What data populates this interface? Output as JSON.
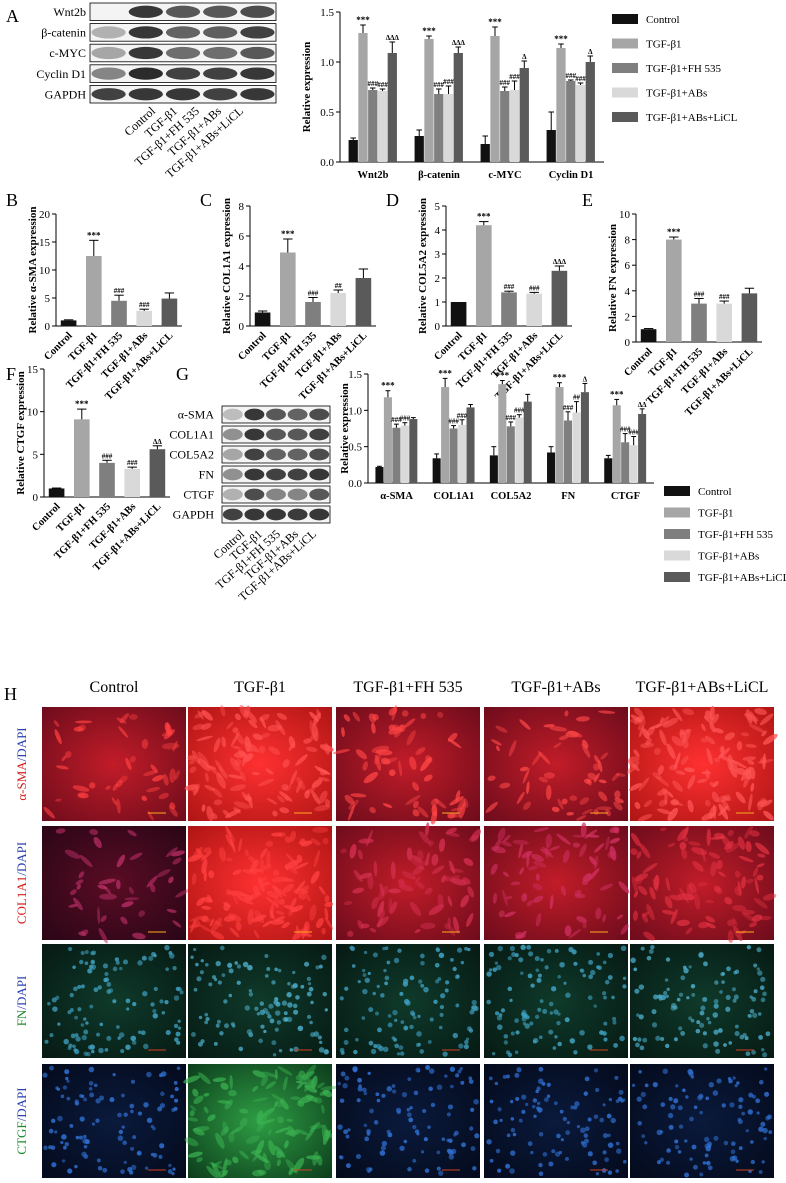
{
  "panel_letters": [
    "A",
    "B",
    "C",
    "D",
    "E",
    "F",
    "G",
    "H"
  ],
  "groups": [
    "Control",
    "TGF-β1",
    "TGF-β1+FH 535",
    "TGF-β1+ABs",
    "TGF-β1+ABs+LiCL"
  ],
  "colors": {
    "Control": "#111111",
    "TGF-β1": "#a6a6a6",
    "TGF-β1+FH 535": "#7f7f7f",
    "TGF-β1+ABs": "#d9d9d9",
    "TGF-β1+ABs+LiCL": "#5a5a5a"
  },
  "blotA": {
    "proteins": [
      "Wnt2b",
      "β-catenin",
      "c-MYC",
      "Cyclin D1",
      "GAPDH"
    ]
  },
  "blotG": {
    "proteins": [
      "α-SMA",
      "COL1A1",
      "COL5A2",
      "FN",
      "CTGF",
      "GAPDH"
    ]
  },
  "chart_data": [
    {
      "id": "A",
      "type": "bar",
      "ylabel": "Relative  expression",
      "ylim": [
        0,
        1.5
      ],
      "yticks": [
        "0.0",
        "0.5",
        "1.0",
        "1.5"
      ],
      "categories": [
        "Wnt2b",
        "β-catenin",
        "c-MYC",
        "Cyclin D1"
      ],
      "series": [
        {
          "name": "Control",
          "values": [
            0.22,
            0.26,
            0.18,
            0.32
          ],
          "err": [
            0.02,
            0.06,
            0.08,
            0.18
          ],
          "labels": [
            "",
            "",
            "",
            ""
          ]
        },
        {
          "name": "TGF-β1",
          "values": [
            1.29,
            1.23,
            1.26,
            1.14
          ],
          "err": [
            0.08,
            0.03,
            0.09,
            0.04
          ],
          "labels": [
            "***",
            "***",
            "***",
            "***"
          ]
        },
        {
          "name": "TGF-β1+FH 535",
          "values": [
            0.72,
            0.68,
            0.71,
            0.81
          ],
          "err": [
            0.02,
            0.05,
            0.04,
            0.01
          ],
          "labels": [
            "###",
            "###",
            "###",
            "###"
          ]
        },
        {
          "name": "TGF-β1+ABs",
          "values": [
            0.71,
            0.68,
            0.72,
            0.77
          ],
          "err": [
            0.02,
            0.08,
            0.09,
            0.02
          ],
          "labels": [
            "###",
            "###",
            "###",
            "###"
          ]
        },
        {
          "name": "TGF-β1+ABs+LiCL",
          "values": [
            1.09,
            1.09,
            0.94,
            1.0
          ],
          "err": [
            0.11,
            0.06,
            0.07,
            0.06
          ],
          "labels": [
            "ΔΔΔ",
            "ΔΔΔ",
            "Δ",
            "Δ"
          ]
        }
      ]
    },
    {
      "id": "B",
      "type": "bar",
      "ylabel": "Relative α-SMA expression",
      "ylim": [
        0,
        20
      ],
      "yticks": [
        "0",
        "5",
        "10",
        "15",
        "20"
      ],
      "categories": [
        "Control",
        "TGF-β1",
        "TGF-β1+FH 535",
        "TGF-β1+ABs",
        "TGF-β1+ABs+LiCL"
      ],
      "values": [
        1.0,
        12.5,
        4.5,
        2.7,
        4.9
      ],
      "err": [
        0.1,
        2.8,
        1.0,
        0.3,
        1.0
      ],
      "labels": [
        "",
        "***",
        "###",
        "###",
        ""
      ]
    },
    {
      "id": "C",
      "type": "bar",
      "ylabel": "Relative COL1A1 expression",
      "ylim": [
        0,
        8
      ],
      "yticks": [
        "0",
        "2",
        "4",
        "6",
        "8"
      ],
      "categories": [
        "Control",
        "TGF-β1",
        "TGF-β1+FH 535",
        "TGF-β1+ABs",
        "TGF-β1+ABs+LiCL"
      ],
      "values": [
        0.9,
        4.9,
        1.6,
        2.2,
        3.2
      ],
      "err": [
        0.1,
        0.9,
        0.3,
        0.2,
        0.6
      ],
      "labels": [
        "",
        "***",
        "###",
        "##",
        ""
      ]
    },
    {
      "id": "D",
      "type": "bar",
      "ylabel": "Relative COL5A2 expression",
      "ylim": [
        0,
        5
      ],
      "yticks": [
        "0",
        "1",
        "2",
        "3",
        "4",
        "5"
      ],
      "categories": [
        "Control",
        "TGF-β1",
        "TGF-β1+FH 535",
        "TGF-β1+ABs",
        "TGF-β1+ABs+LiCL"
      ],
      "values": [
        1.0,
        4.2,
        1.4,
        1.35,
        2.3
      ],
      "err": [
        0.0,
        0.15,
        0.05,
        0.05,
        0.2
      ],
      "labels": [
        "",
        "***",
        "###",
        "###",
        "ΔΔΔ"
      ]
    },
    {
      "id": "E",
      "type": "bar",
      "ylabel": "Relative  FN expression",
      "ylim": [
        0,
        10
      ],
      "yticks": [
        "0",
        "2",
        "4",
        "6",
        "8",
        "10"
      ],
      "categories": [
        "Control",
        "TGF-β1",
        "TGF-β1+FH 535",
        "TGF-β1+ABs",
        "TGF-β1+ABs+LiCL"
      ],
      "values": [
        1.0,
        8.0,
        3.0,
        3.0,
        3.8
      ],
      "err": [
        0.05,
        0.2,
        0.4,
        0.2,
        0.4
      ],
      "labels": [
        "",
        "***",
        "###",
        "###",
        ""
      ]
    },
    {
      "id": "F",
      "type": "bar",
      "ylabel": "Relative  CTGF expression",
      "ylim": [
        0,
        15
      ],
      "yticks": [
        "0",
        "5",
        "10",
        "15"
      ],
      "categories": [
        "Control",
        "TGF-β1",
        "TGF-β1+FH 535",
        "TGF-β1+ABs",
        "TGF-β1+ABs+LiCL"
      ],
      "values": [
        1.0,
        9.1,
        4.0,
        3.3,
        5.6
      ],
      "err": [
        0.05,
        1.2,
        0.3,
        0.2,
        0.4
      ],
      "labels": [
        "",
        "***",
        "###",
        "###",
        "ΔΔ"
      ]
    },
    {
      "id": "G",
      "type": "bar",
      "ylabel": "Relative  expression",
      "ylim": [
        0,
        1.5
      ],
      "yticks": [
        "0.0",
        "0.5",
        "1.0",
        "1.5"
      ],
      "categories": [
        "α-SMA",
        "COL1A1",
        "COL5A2",
        "FN",
        "CTGF"
      ],
      "series": [
        {
          "name": "Control",
          "values": [
            0.22,
            0.34,
            0.38,
            0.42,
            0.34
          ],
          "err": [
            0.01,
            0.06,
            0.12,
            0.08,
            0.04
          ],
          "labels": [
            "",
            "",
            "",
            "",
            ""
          ]
        },
        {
          "name": "TGF-β1",
          "values": [
            1.18,
            1.32,
            1.36,
            1.32,
            1.07
          ],
          "err": [
            0.09,
            0.12,
            0.05,
            0.06,
            0.08
          ],
          "labels": [
            "***",
            "***",
            "***",
            "***",
            "***"
          ]
        },
        {
          "name": "TGF-β1+FH 535",
          "values": [
            0.76,
            0.75,
            0.78,
            0.86,
            0.56
          ],
          "err": [
            0.05,
            0.04,
            0.06,
            0.12,
            0.12
          ],
          "labels": [
            "###",
            "###",
            "###",
            "###",
            "###"
          ]
        },
        {
          "name": "TGF-β1+ABs",
          "values": [
            0.79,
            0.8,
            0.9,
            0.97,
            0.52
          ],
          "err": [
            0.04,
            0.07,
            0.04,
            0.15,
            0.12
          ],
          "labels": [
            "###",
            "###",
            "###",
            "##",
            "###"
          ]
        },
        {
          "name": "TGF-β1+ABs+LiCL",
          "values": [
            0.88,
            1.04,
            1.12,
            1.25,
            0.95
          ],
          "err": [
            0.02,
            0.04,
            0.1,
            0.12,
            0.07
          ],
          "labels": [
            "",
            "",
            "",
            "Δ",
            "ΔΔ"
          ]
        }
      ]
    }
  ],
  "panelH": {
    "columns": [
      "Control",
      "TGF-β1",
      "TGF-β1+FH 535",
      "TGF-β1+ABs",
      "TGF-β1+ABs+LiCL"
    ],
    "rows": [
      {
        "marker": "α-SMA",
        "sep": "/",
        "dapi": "DAPI",
        "marker_color": "#d42020"
      },
      {
        "marker": "COL1A1",
        "sep": "/",
        "dapi": "DAPI",
        "marker_color": "#d42020"
      },
      {
        "marker": "FN",
        "sep": "/",
        "dapi": "DAPI",
        "marker_color": "#1e8a2e"
      },
      {
        "marker": "CTGF",
        "sep": "/",
        "dapi": "DAPI",
        "marker_color": "#1e8a2e"
      }
    ]
  }
}
